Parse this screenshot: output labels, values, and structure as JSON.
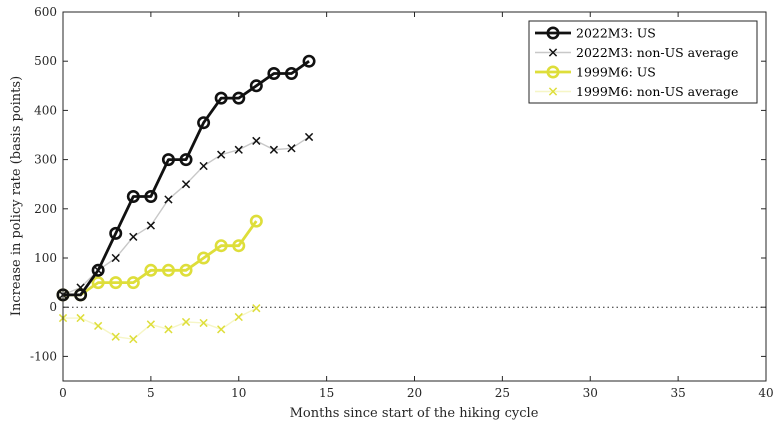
{
  "chart_data": {
    "type": "line",
    "xlabel": "Months since start of the hiking cycle",
    "ylabel": "Increase in policy rate (basis points)",
    "xlim": [
      0,
      40
    ],
    "ylim": [
      -150,
      600
    ],
    "x_ticks": [
      0,
      5,
      10,
      15,
      20,
      25,
      30,
      35,
      40
    ],
    "y_ticks": [
      -100,
      0,
      100,
      200,
      300,
      400,
      500,
      600
    ],
    "grid": false,
    "zero_line": "dotted",
    "legend_position": "top-right",
    "series": [
      {
        "name": "2022M3: US",
        "color": "#111111",
        "marker": "circle",
        "line": "solid",
        "x": [
          0,
          1,
          2,
          3,
          4,
          5,
          6,
          7,
          8,
          9,
          10,
          11,
          12,
          13,
          14
        ],
        "values": [
          25,
          25,
          75,
          150,
          225,
          225,
          300,
          300,
          375,
          425,
          425,
          450,
          475,
          475,
          500
        ]
      },
      {
        "name": "2022M3: non-US average",
        "color": "#c8c8c8",
        "marker_color": "#111111",
        "marker": "x",
        "line": "solid",
        "x": [
          0,
          1,
          2,
          3,
          4,
          5,
          6,
          7,
          8,
          9,
          10,
          11,
          12,
          13,
          14
        ],
        "values": [
          25,
          40,
          75,
          100,
          143,
          166,
          219,
          250,
          287,
          310,
          320,
          338,
          320,
          323,
          346
        ]
      },
      {
        "name": "1999M6: US",
        "color": "#dede3a",
        "marker": "circle",
        "line": "solid",
        "x": [
          0,
          1,
          2,
          3,
          4,
          5,
          6,
          7,
          8,
          9,
          10,
          11
        ],
        "values": [
          25,
          25,
          50,
          50,
          50,
          75,
          75,
          75,
          100,
          125,
          125,
          175
        ]
      },
      {
        "name": "1999M6: non-US average",
        "color": "#f6f6c6",
        "marker_color": "#dede3a",
        "marker": "x",
        "line": "solid",
        "x": [
          0,
          1,
          2,
          3,
          4,
          5,
          6,
          7,
          8,
          9,
          10,
          11
        ],
        "values": [
          -22,
          -22,
          -38,
          -60,
          -65,
          -35,
          -45,
          -30,
          -32,
          -45,
          -20,
          -2
        ]
      }
    ]
  }
}
